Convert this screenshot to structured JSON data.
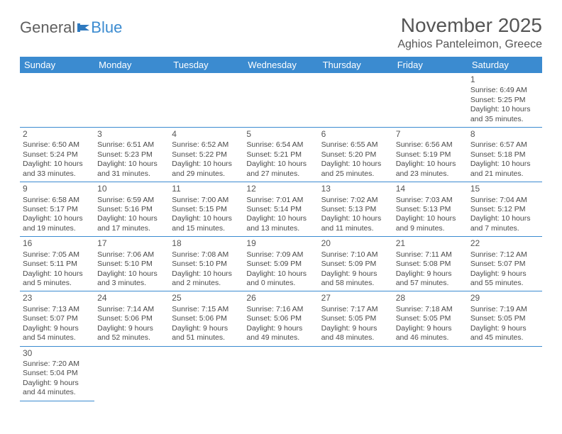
{
  "logo": {
    "part1": "General",
    "part2": "Blue"
  },
  "title": "November 2025",
  "location": "Aghios Panteleimon, Greece",
  "colors": {
    "header_bg": "#3b8bd0",
    "header_fg": "#ffffff",
    "row_border": "#3b8bd0",
    "text": "#4a4a4a",
    "title_color": "#555555"
  },
  "dayHeaders": [
    "Sunday",
    "Monday",
    "Tuesday",
    "Wednesday",
    "Thursday",
    "Friday",
    "Saturday"
  ],
  "weeks": [
    [
      null,
      null,
      null,
      null,
      null,
      null,
      {
        "n": "1",
        "sr": "Sunrise: 6:49 AM",
        "ss": "Sunset: 5:25 PM",
        "dl1": "Daylight: 10 hours",
        "dl2": "and 35 minutes."
      }
    ],
    [
      {
        "n": "2",
        "sr": "Sunrise: 6:50 AM",
        "ss": "Sunset: 5:24 PM",
        "dl1": "Daylight: 10 hours",
        "dl2": "and 33 minutes."
      },
      {
        "n": "3",
        "sr": "Sunrise: 6:51 AM",
        "ss": "Sunset: 5:23 PM",
        "dl1": "Daylight: 10 hours",
        "dl2": "and 31 minutes."
      },
      {
        "n": "4",
        "sr": "Sunrise: 6:52 AM",
        "ss": "Sunset: 5:22 PM",
        "dl1": "Daylight: 10 hours",
        "dl2": "and 29 minutes."
      },
      {
        "n": "5",
        "sr": "Sunrise: 6:54 AM",
        "ss": "Sunset: 5:21 PM",
        "dl1": "Daylight: 10 hours",
        "dl2": "and 27 minutes."
      },
      {
        "n": "6",
        "sr": "Sunrise: 6:55 AM",
        "ss": "Sunset: 5:20 PM",
        "dl1": "Daylight: 10 hours",
        "dl2": "and 25 minutes."
      },
      {
        "n": "7",
        "sr": "Sunrise: 6:56 AM",
        "ss": "Sunset: 5:19 PM",
        "dl1": "Daylight: 10 hours",
        "dl2": "and 23 minutes."
      },
      {
        "n": "8",
        "sr": "Sunrise: 6:57 AM",
        "ss": "Sunset: 5:18 PM",
        "dl1": "Daylight: 10 hours",
        "dl2": "and 21 minutes."
      }
    ],
    [
      {
        "n": "9",
        "sr": "Sunrise: 6:58 AM",
        "ss": "Sunset: 5:17 PM",
        "dl1": "Daylight: 10 hours",
        "dl2": "and 19 minutes."
      },
      {
        "n": "10",
        "sr": "Sunrise: 6:59 AM",
        "ss": "Sunset: 5:16 PM",
        "dl1": "Daylight: 10 hours",
        "dl2": "and 17 minutes."
      },
      {
        "n": "11",
        "sr": "Sunrise: 7:00 AM",
        "ss": "Sunset: 5:15 PM",
        "dl1": "Daylight: 10 hours",
        "dl2": "and 15 minutes."
      },
      {
        "n": "12",
        "sr": "Sunrise: 7:01 AM",
        "ss": "Sunset: 5:14 PM",
        "dl1": "Daylight: 10 hours",
        "dl2": "and 13 minutes."
      },
      {
        "n": "13",
        "sr": "Sunrise: 7:02 AM",
        "ss": "Sunset: 5:13 PM",
        "dl1": "Daylight: 10 hours",
        "dl2": "and 11 minutes."
      },
      {
        "n": "14",
        "sr": "Sunrise: 7:03 AM",
        "ss": "Sunset: 5:13 PM",
        "dl1": "Daylight: 10 hours",
        "dl2": "and 9 minutes."
      },
      {
        "n": "15",
        "sr": "Sunrise: 7:04 AM",
        "ss": "Sunset: 5:12 PM",
        "dl1": "Daylight: 10 hours",
        "dl2": "and 7 minutes."
      }
    ],
    [
      {
        "n": "16",
        "sr": "Sunrise: 7:05 AM",
        "ss": "Sunset: 5:11 PM",
        "dl1": "Daylight: 10 hours",
        "dl2": "and 5 minutes."
      },
      {
        "n": "17",
        "sr": "Sunrise: 7:06 AM",
        "ss": "Sunset: 5:10 PM",
        "dl1": "Daylight: 10 hours",
        "dl2": "and 3 minutes."
      },
      {
        "n": "18",
        "sr": "Sunrise: 7:08 AM",
        "ss": "Sunset: 5:10 PM",
        "dl1": "Daylight: 10 hours",
        "dl2": "and 2 minutes."
      },
      {
        "n": "19",
        "sr": "Sunrise: 7:09 AM",
        "ss": "Sunset: 5:09 PM",
        "dl1": "Daylight: 10 hours",
        "dl2": "and 0 minutes."
      },
      {
        "n": "20",
        "sr": "Sunrise: 7:10 AM",
        "ss": "Sunset: 5:09 PM",
        "dl1": "Daylight: 9 hours",
        "dl2": "and 58 minutes."
      },
      {
        "n": "21",
        "sr": "Sunrise: 7:11 AM",
        "ss": "Sunset: 5:08 PM",
        "dl1": "Daylight: 9 hours",
        "dl2": "and 57 minutes."
      },
      {
        "n": "22",
        "sr": "Sunrise: 7:12 AM",
        "ss": "Sunset: 5:07 PM",
        "dl1": "Daylight: 9 hours",
        "dl2": "and 55 minutes."
      }
    ],
    [
      {
        "n": "23",
        "sr": "Sunrise: 7:13 AM",
        "ss": "Sunset: 5:07 PM",
        "dl1": "Daylight: 9 hours",
        "dl2": "and 54 minutes."
      },
      {
        "n": "24",
        "sr": "Sunrise: 7:14 AM",
        "ss": "Sunset: 5:06 PM",
        "dl1": "Daylight: 9 hours",
        "dl2": "and 52 minutes."
      },
      {
        "n": "25",
        "sr": "Sunrise: 7:15 AM",
        "ss": "Sunset: 5:06 PM",
        "dl1": "Daylight: 9 hours",
        "dl2": "and 51 minutes."
      },
      {
        "n": "26",
        "sr": "Sunrise: 7:16 AM",
        "ss": "Sunset: 5:06 PM",
        "dl1": "Daylight: 9 hours",
        "dl2": "and 49 minutes."
      },
      {
        "n": "27",
        "sr": "Sunrise: 7:17 AM",
        "ss": "Sunset: 5:05 PM",
        "dl1": "Daylight: 9 hours",
        "dl2": "and 48 minutes."
      },
      {
        "n": "28",
        "sr": "Sunrise: 7:18 AM",
        "ss": "Sunset: 5:05 PM",
        "dl1": "Daylight: 9 hours",
        "dl2": "and 46 minutes."
      },
      {
        "n": "29",
        "sr": "Sunrise: 7:19 AM",
        "ss": "Sunset: 5:05 PM",
        "dl1": "Daylight: 9 hours",
        "dl2": "and 45 minutes."
      }
    ],
    [
      {
        "n": "30",
        "sr": "Sunrise: 7:20 AM",
        "ss": "Sunset: 5:04 PM",
        "dl1": "Daylight: 9 hours",
        "dl2": "and 44 minutes."
      },
      null,
      null,
      null,
      null,
      null,
      null
    ]
  ]
}
